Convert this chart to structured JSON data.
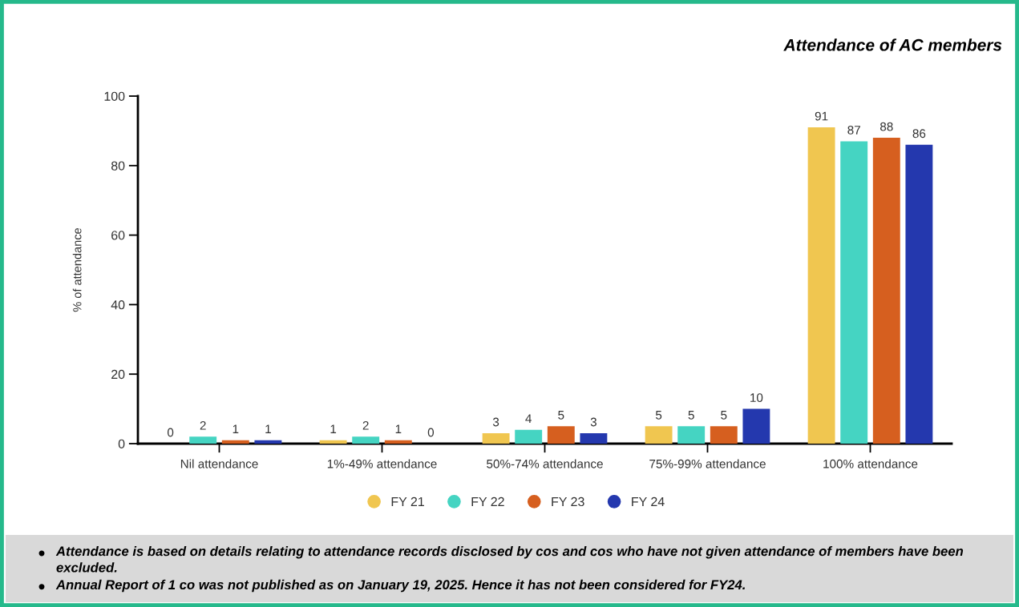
{
  "chart_data": {
    "type": "bar",
    "title": "Attendance of AC members",
    "ylabel": "% of attendance",
    "categories": [
      "Nil attendance",
      "1%-49% attendance",
      "50%-74% attendance",
      "75%-99% attendance",
      "100% attendance"
    ],
    "series": [
      {
        "name": "FY 21",
        "color": "#f0c650",
        "values": [
          0,
          1,
          3,
          5,
          91
        ]
      },
      {
        "name": "FY 22",
        "color": "#45d4c2",
        "values": [
          2,
          2,
          4,
          5,
          87
        ]
      },
      {
        "name": "FY 23",
        "color": "#d65f1f",
        "values": [
          1,
          1,
          5,
          5,
          88
        ]
      },
      {
        "name": "FY 24",
        "color": "#2438ae",
        "values": [
          1,
          0,
          3,
          10,
          86
        ]
      }
    ],
    "ylim": [
      0,
      100
    ],
    "yticks": [
      0,
      20,
      40,
      60,
      80,
      100
    ],
    "data_labels": true,
    "legend": "bottom",
    "annotations": [
      "Attendance is based on details relating to attendance records disclosed by cos and cos who have not given attendance of members have been excluded.",
      "Annual Report of 1 co was not published as on January 19, 2025. Hence it has not been considered for FY24."
    ]
  }
}
